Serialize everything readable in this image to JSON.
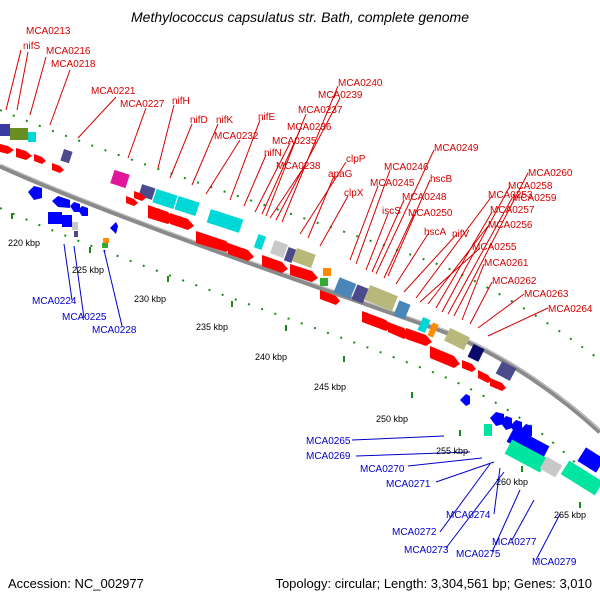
{
  "title": "Methylococcus capsulatus str. Bath, complete genome",
  "accession": "Accession: NC_002977",
  "summary": "Topology: circular; Length: 3,304,561 bp; Genes: 3,010",
  "colors": {
    "forward_label": "#d40000",
    "reverse_label": "#0000cc",
    "backbone": "#8a8a8a"
  },
  "ticks": [
    "220 kbp",
    "225 kbp",
    "230 kbp",
    "235 kbp",
    "240 kbp",
    "245 kbp",
    "250 kbp",
    "255 kbp",
    "260 kbp",
    "265 kbp"
  ],
  "forward_labels": [
    "MCA0213",
    "nifS",
    "MCA0216",
    "MCA0218",
    "MCA0221",
    "MCA0227",
    "nifH",
    "nifD",
    "nifK",
    "MCA0232",
    "nifE",
    "nifN",
    "MCA0235",
    "MCA0236",
    "MCA0237",
    "MCA0238",
    "MCA0239",
    "MCA0240",
    "clpP",
    "apaG",
    "clpX",
    "MCA0245",
    "MCA0246",
    "iscS",
    "MCA0248",
    "hscB",
    "MCA0249",
    "MCA0250",
    "hscA",
    "nifV",
    "MCA0253",
    "MCA0255",
    "MCA0256",
    "MCA0257",
    "MCA0258",
    "MCA0259",
    "MCA0260",
    "MCA0261",
    "MCA0262",
    "MCA0263",
    "MCA0264"
  ],
  "reverse_labels": [
    "MCA0224",
    "MCA0225",
    "MCA0228",
    "MCA0265",
    "MCA0269",
    "MCA0270",
    "MCA0271",
    "MCA0272",
    "MCA0273",
    "MCA0274",
    "MCA0275",
    "MCA0277",
    "MCA0279"
  ]
}
